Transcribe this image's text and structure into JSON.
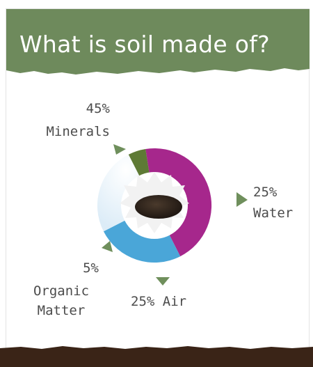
{
  "title": "What is soil made of?",
  "colors": {
    "header": "#6e8a5c",
    "footer": "#3a2417",
    "minerals": "#a6278c",
    "water": "#4aa6d8",
    "air": "#ffffff",
    "organic": "#5e7a35",
    "pointer": "#6f8f5c",
    "label_text": "#4c4c4c"
  },
  "chart_data": {
    "type": "pie",
    "style": "donut",
    "title": "What is soil made of?",
    "slices": [
      {
        "label": "Minerals",
        "value": 45,
        "percent_label": "45%",
        "color": "#a6278c"
      },
      {
        "label": "Water",
        "value": 25,
        "percent_label": "25%",
        "color": "#4aa6d8"
      },
      {
        "label": "Air",
        "value": 25,
        "percent_label": "25%",
        "color": "#ffffff"
      },
      {
        "label": "Organic Matter",
        "value": 5,
        "percent_label": "5%",
        "color": "#5e7a35"
      }
    ]
  }
}
